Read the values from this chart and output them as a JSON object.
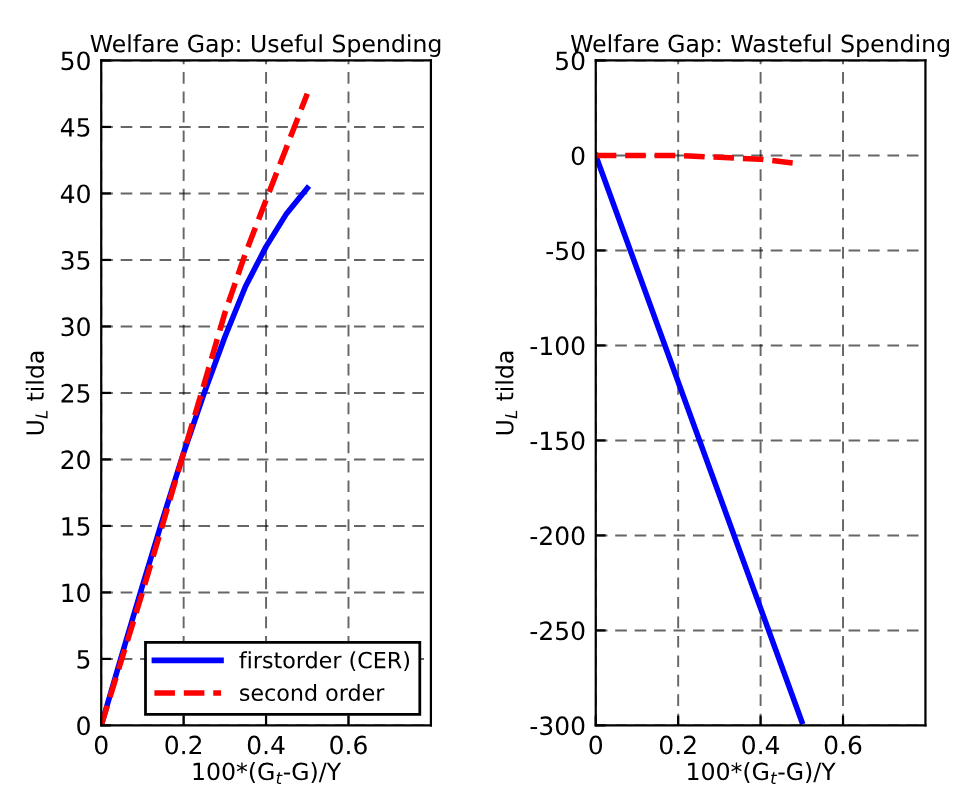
{
  "chart_data": [
    {
      "type": "line",
      "title": "Welfare Gap: Useful Spending",
      "xlabel": "100*(G$_{t}$-G)/Y",
      "ylabel": "U$_{L}$ tilda",
      "xlim": [
        0,
        0.8
      ],
      "xticks": [
        0,
        0.2,
        0.4,
        0.6
      ],
      "ylim": [
        0,
        50
      ],
      "yticks": [
        0,
        5,
        10,
        15,
        20,
        25,
        30,
        35,
        40,
        45,
        50
      ],
      "grid": true,
      "legend": "bottom right",
      "series": [
        {
          "name": "firstorder (CER)",
          "color": "#0000ff",
          "line_style": "solid",
          "x": [
            0,
            0.05,
            0.1,
            0.15,
            0.2,
            0.25,
            0.3,
            0.35,
            0.4,
            0.45,
            0.5
          ],
          "values": [
            0,
            5.3,
            10.5,
            15.6,
            20.5,
            25,
            29.2,
            33,
            36,
            38.5,
            40.4
          ]
        },
        {
          "name": "second order",
          "color": "#ff0000",
          "line_style": "dashed",
          "x": [
            0,
            0.05,
            0.1,
            0.15,
            0.2,
            0.25,
            0.3,
            0.35,
            0.4,
            0.45,
            0.5
          ],
          "values": [
            0,
            5,
            10,
            15.2,
            20.5,
            25.7,
            31,
            35.5,
            39.5,
            43.5,
            47.5
          ]
        }
      ]
    },
    {
      "type": "line",
      "title": "Welfare Gap: Wasteful Spending",
      "xlabel": "100*(G$_{t}$-G)/Y",
      "ylabel": "U$_{L}$ tilda",
      "xlim": [
        0,
        0.8
      ],
      "xticks": [
        0,
        0.2,
        0.4,
        0.6
      ],
      "ylim": [
        -300,
        50
      ],
      "yticks": [
        -300,
        -250,
        -200,
        -150,
        -100,
        -50,
        0,
        50
      ],
      "grid": true,
      "series": [
        {
          "color": "#0000ff",
          "line_style": "solid",
          "x": [
            0,
            0.5
          ],
          "values": [
            0,
            -298
          ]
        },
        {
          "color": "#ff0000",
          "line_style": "dashed",
          "x": [
            0,
            0.1,
            0.2,
            0.3,
            0.4,
            0.48
          ],
          "values": [
            0,
            0,
            0,
            -1,
            -2,
            -4
          ]
        }
      ]
    }
  ]
}
